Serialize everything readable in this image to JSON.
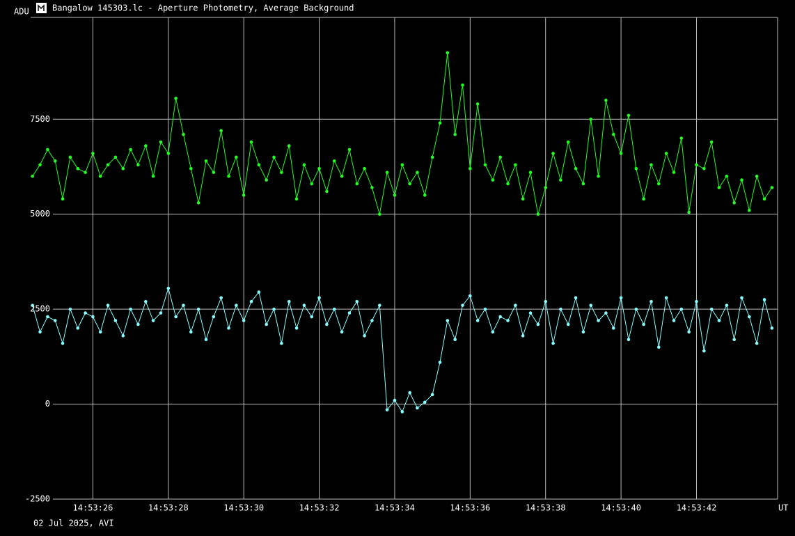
{
  "chart_data": {
    "type": "line",
    "title": "Bangalow 145303.lc - Aperture Photometry, Average Background",
    "y_label": "ADU",
    "x_label": "UT",
    "footer": "02 Jul 2025, AVI",
    "xlim": [
      24.35,
      44.15
    ],
    "ylim": [
      -2500,
      10180
    ],
    "xticks": [
      {
        "value": 26,
        "label": "14:53:26"
      },
      {
        "value": 28,
        "label": "14:53:28"
      },
      {
        "value": 30,
        "label": "14:53:30"
      },
      {
        "value": 32,
        "label": "14:53:32"
      },
      {
        "value": 34,
        "label": "14:53:34"
      },
      {
        "value": 36,
        "label": "14:53:36"
      },
      {
        "value": 38,
        "label": "14:53:38"
      },
      {
        "value": 40,
        "label": "14:53:40"
      },
      {
        "value": 42,
        "label": "14:53:42"
      }
    ],
    "yticks": [
      -2500,
      0,
      2500,
      5000,
      7500
    ],
    "grid": true,
    "x": [
      24.4,
      24.6,
      24.8,
      25.0,
      25.2,
      25.4,
      25.6,
      25.8,
      26.0,
      26.2,
      26.4,
      26.6,
      26.8,
      27.0,
      27.2,
      27.4,
      27.6,
      27.8,
      28.0,
      28.2,
      28.4,
      28.6,
      28.8,
      29.0,
      29.2,
      29.4,
      29.6,
      29.8,
      30.0,
      30.2,
      30.4,
      30.6,
      30.8,
      31.0,
      31.2,
      31.4,
      31.6,
      31.8,
      32.0,
      32.2,
      32.4,
      32.6,
      32.8,
      33.0,
      33.2,
      33.4,
      33.6,
      33.8,
      34.0,
      34.2,
      34.4,
      34.6,
      34.8,
      35.0,
      35.2,
      35.4,
      35.6,
      35.8,
      36.0,
      36.2,
      36.4,
      36.6,
      36.8,
      37.0,
      37.2,
      37.4,
      37.6,
      37.8,
      38.0,
      38.2,
      38.4,
      38.6,
      38.8,
      39.0,
      39.2,
      39.4,
      39.6,
      39.8,
      40.0,
      40.2,
      40.4,
      40.6,
      40.8,
      41.0,
      41.2,
      41.4,
      41.6,
      41.8,
      42.0,
      42.2,
      42.4,
      42.6,
      42.8,
      43.0,
      43.2,
      43.4,
      43.6,
      43.8,
      44.0
    ],
    "series": [
      {
        "color": "#22ff22",
        "values": [
          6000,
          6300,
          6700,
          6400,
          5400,
          6500,
          6200,
          6100,
          6600,
          6000,
          6300,
          6500,
          6200,
          6700,
          6300,
          6800,
          6000,
          6900,
          6600,
          8050,
          7100,
          6200,
          5300,
          6400,
          6100,
          7200,
          6000,
          6500,
          5500,
          6900,
          6300,
          5900,
          6500,
          6100,
          6800,
          5400,
          6300,
          5800,
          6200,
          5600,
          6400,
          6000,
          6700,
          5800,
          6200,
          5700,
          5000,
          6100,
          5500,
          6300,
          5800,
          6100,
          5500,
          6500,
          7400,
          9250,
          7100,
          8400,
          6200,
          7900,
          6300,
          5900,
          6500,
          5800,
          6300,
          5400,
          6100,
          5000,
          5700,
          6600,
          5900,
          6900,
          6200,
          5800,
          7500,
          6000,
          8000,
          7100,
          6600,
          7600,
          6200,
          5400,
          6300,
          5800,
          6600,
          6100,
          7000,
          5050,
          6300,
          6200,
          6900,
          5700,
          6000,
          5300,
          5900,
          5100,
          6000,
          5400,
          5700
        ]
      },
      {
        "color": "#88ffff",
        "values": [
          2600,
          1900,
          2300,
          2200,
          1600,
          2500,
          2000,
          2400,
          2300,
          1900,
          2600,
          2200,
          1800,
          2500,
          2100,
          2700,
          2200,
          2400,
          3050,
          2300,
          2600,
          1900,
          2500,
          1700,
          2300,
          2800,
          2000,
          2600,
          2200,
          2700,
          2950,
          2100,
          2500,
          1600,
          2700,
          2000,
          2600,
          2300,
          2800,
          2100,
          2500,
          1900,
          2400,
          2700,
          1800,
          2200,
          2600,
          -150,
          100,
          -200,
          300,
          -100,
          50,
          250,
          1100,
          2200,
          1700,
          2600,
          2850,
          2200,
          2500,
          1900,
          2300,
          2200,
          2600,
          1800,
          2400,
          2100,
          2700,
          1600,
          2500,
          2100,
          2800,
          1900,
          2600,
          2200,
          2400,
          2000,
          2800,
          1700,
          2500,
          2100,
          2700,
          1500,
          2800,
          2200,
          2500,
          1900,
          2700,
          1400,
          2500,
          2200,
          2600,
          1700,
          2800,
          2300,
          1600,
          2750,
          2000
        ]
      }
    ]
  }
}
